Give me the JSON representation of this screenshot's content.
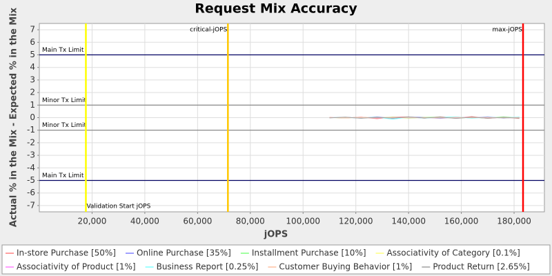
{
  "chart_data": {
    "type": "line",
    "title": "Request Mix Accuracy",
    "x_label": "jOPS",
    "y_label": "Actual % in the Mix - Expected % in the Mix",
    "xlim": [
      0,
      191500
    ],
    "ylim": [
      -7.5,
      7.5
    ],
    "xticks": [
      {
        "value": 20000,
        "label": "20,000"
      },
      {
        "value": 40000,
        "label": "40,000"
      },
      {
        "value": 60000,
        "label": "60,000"
      },
      {
        "value": 80000,
        "label": "80,000"
      },
      {
        "value": 100000,
        "label": "100,000"
      },
      {
        "value": 120000,
        "label": "120,000"
      },
      {
        "value": 140000,
        "label": "140,000"
      },
      {
        "value": 160000,
        "label": "160,000"
      },
      {
        "value": 180000,
        "label": "180,000"
      }
    ],
    "yticks": [
      -7,
      -6,
      -5,
      -4,
      -3,
      -2,
      -1,
      0,
      1,
      2,
      3,
      4,
      5,
      6,
      7
    ],
    "grid": true,
    "legend": "bottom",
    "hlines": [
      {
        "value": 5,
        "label": "Main Tx Limit",
        "color": "#000060"
      },
      {
        "value": 1,
        "label": "Minor Tx Limit",
        "color": "#808080"
      },
      {
        "value": -1,
        "label": "Minor Tx Limit",
        "color": "#808080"
      },
      {
        "value": -5,
        "label": "Main Tx Limit",
        "color": "#000060"
      }
    ],
    "vlines": [
      {
        "value": 17650,
        "label": "Validation Start jOPS",
        "color": "#ffff00"
      },
      {
        "value": 71500,
        "label": "critical-jOPS",
        "color": "#ffc800"
      },
      {
        "value": 183400,
        "label": "max-jOPS",
        "color": "#ff0000"
      }
    ],
    "x": [
      110000,
      116000,
      122000,
      128000,
      134000,
      140000,
      146000,
      152000,
      158000,
      164000,
      170000,
      176000,
      182000
    ],
    "series": [
      {
        "name": "In-store Purchase [50%]",
        "color": "#ff8080",
        "values": [
          0.02,
          -0.03,
          0.05,
          -0.08,
          0.04,
          0.06,
          -0.05,
          0.07,
          -0.04,
          0.08,
          -0.06,
          0.05,
          -0.07
        ]
      },
      {
        "name": "Online Purchase [35%]",
        "color": "#8080ff",
        "values": [
          -0.01,
          0.03,
          -0.04,
          0.06,
          -0.05,
          0.04,
          0.03,
          -0.06,
          0.05,
          -0.03,
          0.07,
          -0.05,
          0.04
        ]
      },
      {
        "name": "Installment Purchase [10%]",
        "color": "#80ff80",
        "values": [
          0.01,
          -0.02,
          0.03,
          -0.03,
          0.05,
          -0.04,
          0.02,
          0.04,
          -0.05,
          0.03,
          -0.04,
          0.06,
          -0.03
        ]
      },
      {
        "name": "Associativity of Category [0.1%]",
        "color": "#ffff80",
        "values": [
          0,
          0.01,
          -0.01,
          0.01,
          0,
          -0.01,
          0.01,
          0,
          -0.01,
          0.01,
          0,
          -0.01,
          0.01
        ]
      },
      {
        "name": "Associativity of Product [1%]",
        "color": "#ff80ff",
        "values": [
          0.01,
          -0.01,
          0.02,
          -0.02,
          0.01,
          0.02,
          -0.02,
          0.01,
          -0.01,
          0.02,
          -0.02,
          0.01,
          -0.01
        ]
      },
      {
        "name": "Business Report [0.25%]",
        "color": "#80ffff",
        "values": [
          0,
          0.02,
          -0.03,
          0.04,
          -0.12,
          0.05,
          -0.04,
          0.03,
          0.06,
          -0.05,
          0.04,
          -0.03,
          0.05
        ]
      },
      {
        "name": "Customer Buying Behavior [1%]",
        "color": "#ffc0a0",
        "values": [
          0.01,
          -0.02,
          0.02,
          -0.01,
          0.03,
          -0.02,
          0.01,
          -0.03,
          0.02,
          -0.01,
          0.02,
          -0.02,
          0.01
        ]
      },
      {
        "name": "Product Return [2.65%]",
        "color": "#a0a0a0",
        "values": [
          -0.02,
          0.04,
          -0.05,
          0.03,
          -0.04,
          0.06,
          -0.03,
          0.05,
          -0.06,
          0.04,
          -0.05,
          0.03,
          -0.04
        ]
      }
    ]
  }
}
